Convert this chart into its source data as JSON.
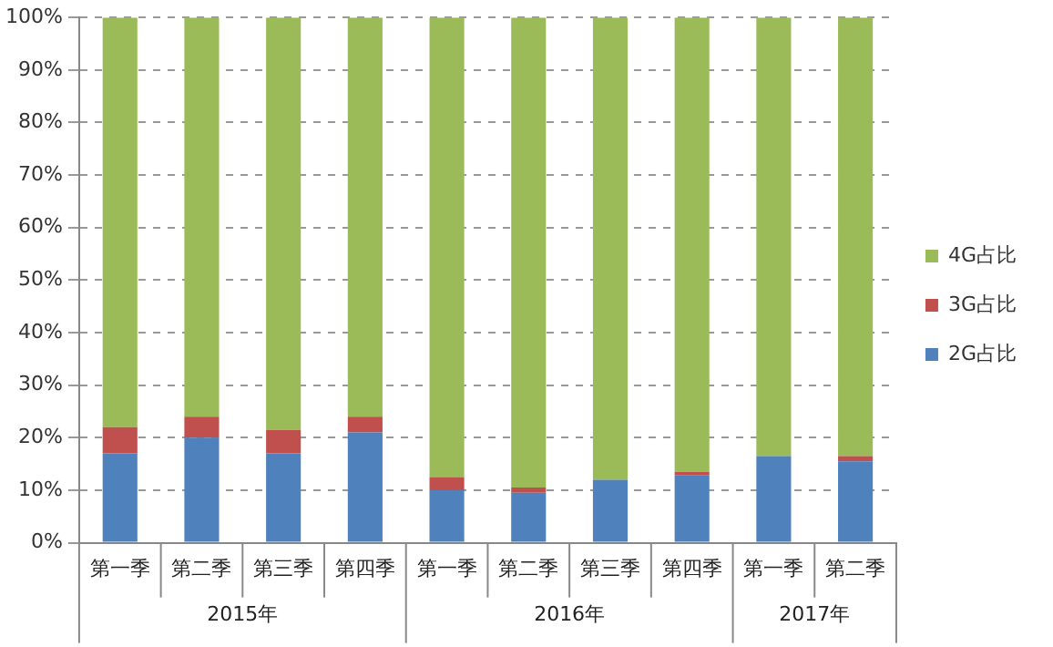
{
  "chart_data": {
    "type": "bar",
    "stacked": true,
    "categories": [
      "第一季",
      "第二季",
      "第三季",
      "第四季",
      "第一季",
      "第二季",
      "第三季",
      "第四季",
      "第一季",
      "第二季"
    ],
    "series": [
      {
        "name": "2G占比",
        "color": "#4f81bd",
        "values": [
          17,
          20,
          17,
          21,
          10,
          9.5,
          12,
          12.8,
          16.5,
          15.5
        ]
      },
      {
        "name": "3G占比",
        "color": "#c0504d",
        "values": [
          5,
          4,
          4.5,
          3,
          2.5,
          1,
          0,
          0.7,
          0,
          1
        ]
      },
      {
        "name": "4G占比",
        "color": "#9bbb59",
        "values": [
          78,
          76,
          78.5,
          76,
          87.5,
          89.5,
          88,
          86.5,
          83.5,
          83.5
        ]
      }
    ],
    "ylim": [
      0,
      100
    ],
    "yticks": [
      {
        "value": 0,
        "label": "0%"
      },
      {
        "value": 10,
        "label": "10%"
      },
      {
        "value": 20,
        "label": "20%"
      },
      {
        "value": 30,
        "label": "30%"
      },
      {
        "value": 40,
        "label": "40%"
      },
      {
        "value": 50,
        "label": "50%"
      },
      {
        "value": 60,
        "label": "60%"
      },
      {
        "value": 70,
        "label": "70%"
      },
      {
        "value": 80,
        "label": "80%"
      },
      {
        "value": 90,
        "label": "90%"
      },
      {
        "value": 100,
        "label": "100%"
      }
    ],
    "grid": "y",
    "line_style": "dashed",
    "legend": "right",
    "annotations": [
      "2015年",
      "2016年",
      "2017年"
    ]
  }
}
